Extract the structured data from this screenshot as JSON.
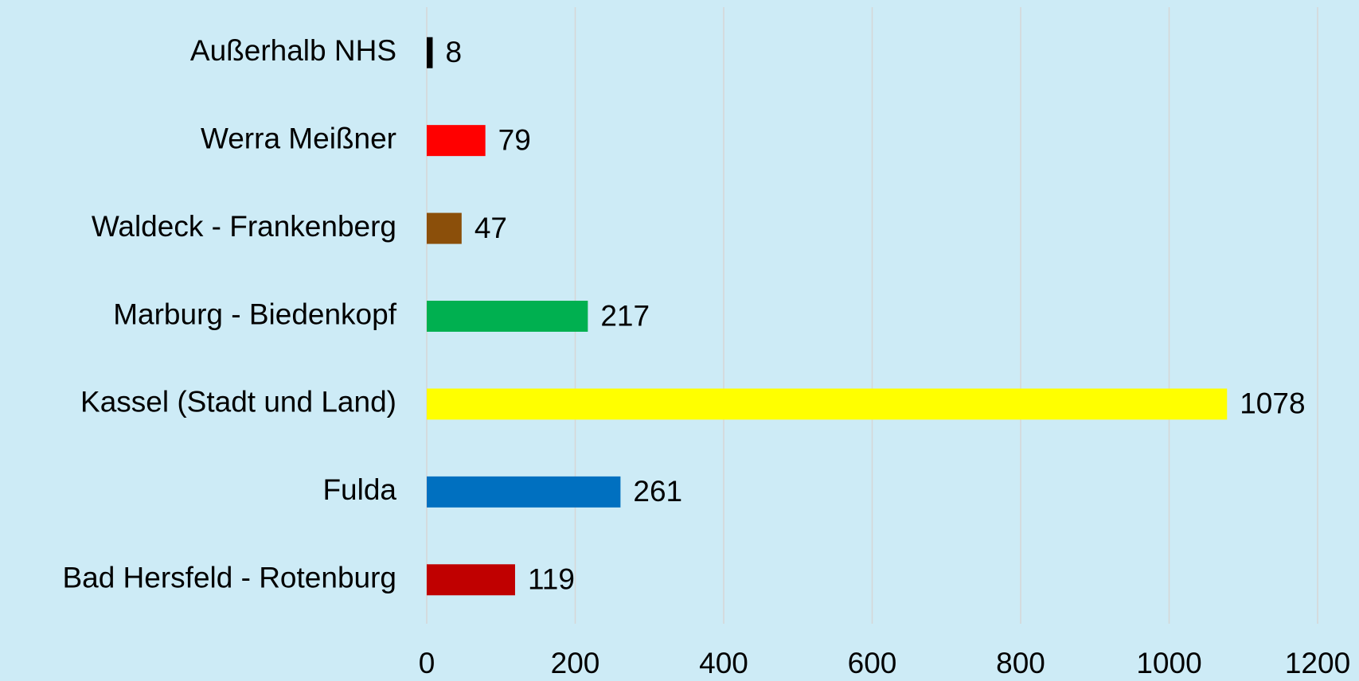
{
  "chart_data": {
    "type": "bar",
    "orientation": "horizontal",
    "categories": [
      "Außerhalb NHS",
      "Werra Meißner",
      "Waldeck - Frankenberg",
      "Marburg - Biedenkopf",
      "Kassel (Stadt und Land)",
      "Fulda",
      "Bad Hersfeld - Rotenburg"
    ],
    "values": [
      8,
      79,
      47,
      217,
      1078,
      261,
      119
    ],
    "colors": [
      "#000000",
      "#ff0000",
      "#8b4f0a",
      "#00b050",
      "#ffff00",
      "#0070c0",
      "#c00000"
    ],
    "xlim": [
      0,
      1200
    ],
    "xticks": [
      0,
      200,
      400,
      600,
      800,
      1000,
      1200
    ],
    "grid": true
  }
}
